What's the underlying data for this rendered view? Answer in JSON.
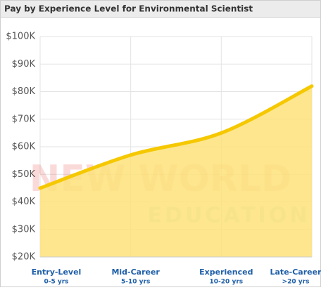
{
  "chart_data": {
    "type": "area",
    "title": "Pay by Experience Level for Environmental Scientist",
    "categories": [
      "Entry-Level",
      "Mid-Career",
      "Experienced",
      "Late-Career"
    ],
    "category_sublabels": [
      "0-5 yrs",
      "5-10 yrs",
      "10-20 yrs",
      ">20 yrs"
    ],
    "values": [
      45000,
      57000,
      65000,
      82000
    ],
    "line_color": "#f5c800",
    "fill_color": "#fde27a",
    "ylim": [
      20000,
      100000
    ],
    "yticks": [
      {
        "value": 20000,
        "label": "$20K"
      },
      {
        "value": 30000,
        "label": "$30K"
      },
      {
        "value": 40000,
        "label": "$40K"
      },
      {
        "value": 50000,
        "label": "$50K"
      },
      {
        "value": 60000,
        "label": "$60K"
      },
      {
        "value": 70000,
        "label": "$70K"
      },
      {
        "value": 80000,
        "label": "$80K"
      },
      {
        "value": 90000,
        "label": "$90K"
      },
      {
        "value": 100000,
        "label": "$100K"
      }
    ],
    "grid": true,
    "watermark": {
      "line1": "NEW WORLD",
      "line2": "EDUCATION"
    }
  }
}
